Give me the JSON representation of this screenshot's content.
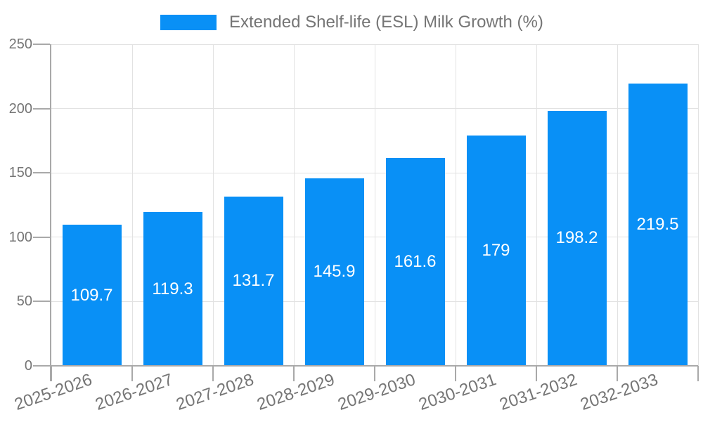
{
  "legend": {
    "label": "Extended Shelf-life (ESL) Milk Growth (%)"
  },
  "chart_data": {
    "type": "bar",
    "categories": [
      "2025-2026",
      "2026-2027",
      "2027-2028",
      "2028-2029",
      "2029-2030",
      "2030-2031",
      "2031-2032",
      "2032-2033"
    ],
    "series": [
      {
        "name": "Extended Shelf-life (ESL) Milk Growth (%)",
        "values": [
          109.7,
          119.3,
          131.7,
          145.9,
          161.6,
          179,
          198.2,
          219.5
        ]
      }
    ],
    "title": "",
    "xlabel": "",
    "ylabel": "",
    "ylim": [
      0,
      250
    ],
    "yticks": [
      0,
      50,
      100,
      150,
      200,
      250
    ],
    "grid": true,
    "legend_position": "top",
    "bar_label_position": "inside-center"
  },
  "colors": {
    "bar": "#0990f6",
    "axis_text": "#757575",
    "grid": "#e2e2e2",
    "axis_line": "#a9a9a9",
    "value_text": "#ffffff"
  }
}
